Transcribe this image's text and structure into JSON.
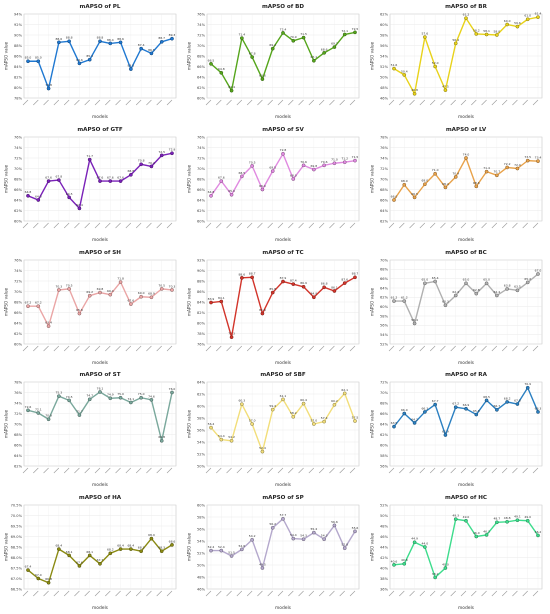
{
  "chart_data": [
    {
      "type": "line",
      "title": "mAPSO of PL",
      "ylabel": "mAPSO value",
      "xlabel": "models",
      "color": "#1f78d1",
      "yticks": [
        "78%",
        "80%",
        "82%",
        "84%",
        "86%",
        "88%",
        "90%",
        "92%",
        "94%"
      ],
      "values": [
        85.0,
        85.0,
        79.8,
        88.6,
        88.8,
        84.6,
        85.3,
        88.8,
        88.4,
        88.6,
        83.5,
        87.4,
        86.5,
        88.7,
        89.3
      ]
    },
    {
      "type": "line",
      "title": "mAPSO of BD",
      "ylabel": "mAPSO value",
      "xlabel": "models",
      "color": "#55a51b",
      "yticks": [
        "60%",
        "62%",
        "64%",
        "66%",
        "68%",
        "70%",
        "72%",
        "74%",
        "76%"
      ],
      "values": [
        66.5,
        64.8,
        61.4,
        71.4,
        67.8,
        63.6,
        69.4,
        72.4,
        70.9,
        71.5,
        67.1,
        68.6,
        69.7,
        72.1,
        72.5
      ]
    },
    {
      "type": "line",
      "title": "mAPSO of BR",
      "ylabel": "mAPSO value",
      "xlabel": "models",
      "color": "#e8d21a",
      "yticks": [
        "46%",
        "48%",
        "50%",
        "52%",
        "54%",
        "56%",
        "58%",
        "60%",
        "62%"
      ],
      "values": [
        51.6,
        50.4,
        46.8,
        57.6,
        52.0,
        47.5,
        56.4,
        61.2,
        58.2,
        58.1,
        58.0,
        60.0,
        59.6,
        61.0,
        61.4
      ]
    },
    {
      "type": "line",
      "title": "mAPSO of GTF",
      "ylabel": "mAPSO value",
      "xlabel": "models",
      "color": "#7a21b8",
      "yticks": [
        "60%",
        "62%",
        "64%",
        "66%",
        "68%",
        "70%",
        "72%",
        "74%",
        "76%"
      ],
      "values": [
        64.8,
        64.0,
        67.6,
        67.8,
        64.5,
        62.4,
        71.7,
        67.6,
        67.6,
        67.6,
        68.8,
        70.8,
        70.4,
        72.5,
        72.9
      ]
    },
    {
      "type": "line",
      "title": "mAPSO of SV",
      "ylabel": "mAPSO value",
      "xlabel": "models",
      "color": "#e08ae0",
      "yticks": [
        "60%",
        "62%",
        "64%",
        "66%",
        "68%",
        "70%",
        "72%",
        "74%",
        "76%"
      ],
      "values": [
        64.8,
        67.6,
        65.0,
        68.5,
        70.5,
        66.0,
        69.5,
        72.8,
        68.0,
        70.6,
        69.8,
        70.6,
        71.0,
        71.2,
        71.5
      ]
    },
    {
      "type": "line",
      "title": "mAPSO of LV",
      "ylabel": "mAPSO value",
      "xlabel": "models",
      "color": "#e8a24a",
      "yticks": [
        "62%",
        "64%",
        "66%",
        "68%",
        "70%",
        "72%",
        "74%",
        "76%",
        "78%"
      ],
      "values": [
        66.0,
        68.9,
        66.5,
        69.0,
        71.0,
        68.4,
        70.4,
        74.0,
        68.6,
        71.4,
        70.7,
        72.2,
        72.0,
        73.5,
        73.4
      ]
    },
    {
      "type": "line",
      "title": "mAPSO of SH",
      "ylabel": "mAPSO value",
      "xlabel": "models",
      "color": "#eaa5a5",
      "yticks": [
        "60%",
        "62%",
        "64%",
        "66%",
        "68%",
        "70%",
        "72%",
        "74%",
        "76%"
      ],
      "values": [
        67.2,
        67.2,
        63.4,
        70.3,
        70.5,
        65.8,
        69.2,
        69.8,
        69.4,
        71.8,
        67.6,
        69.0,
        68.9,
        70.5,
        70.3
      ]
    },
    {
      "type": "line",
      "title": "mAPSO of TC",
      "ylabel": "mAPSO value",
      "xlabel": "models",
      "color": "#d2342a",
      "yticks": [
        "76%",
        "78%",
        "80%",
        "82%",
        "84%",
        "86%",
        "88%",
        "90%",
        "92%"
      ],
      "values": [
        83.9,
        84.1,
        77.3,
        88.6,
        88.7,
        81.8,
        85.8,
        87.9,
        87.4,
        86.9,
        84.9,
        86.8,
        86.1,
        87.6,
        88.7
      ]
    },
    {
      "type": "line",
      "title": "mAPSO of BC",
      "ylabel": "mAPSO value",
      "xlabel": "models",
      "color": "#b0b0b0",
      "yticks": [
        "52%",
        "54%",
        "56%",
        "58%",
        "60%",
        "62%",
        "64%",
        "66%",
        "68%",
        "70%"
      ],
      "values": [
        61.2,
        61.2,
        56.4,
        65.0,
        65.4,
        60.3,
        62.4,
        65.0,
        62.8,
        65.0,
        62.4,
        63.8,
        63.5,
        65.2,
        67.0
      ]
    },
    {
      "type": "line",
      "title": "mAPSO of ST",
      "ylabel": "mAPSO value",
      "xlabel": "models",
      "color": "#7aa89c",
      "yticks": [
        "62%",
        "64%",
        "66%",
        "68%",
        "70%",
        "72%",
        "74%",
        "76%",
        "78%"
      ],
      "values": [
        72.6,
        72.1,
        70.9,
        75.3,
        74.5,
        71.7,
        74.7,
        76.1,
        74.9,
        75.0,
        74.1,
        75.0,
        74.6,
        66.8,
        76.0
      ]
    },
    {
      "type": "line",
      "title": "mAPSO of SBF",
      "ylabel": "mAPSO value",
      "xlabel": "models",
      "color": "#f2de7a",
      "yticks": [
        "50%",
        "52%",
        "54%",
        "56%",
        "58%",
        "60%",
        "62%",
        "64%"
      ],
      "values": [
        56.4,
        54.4,
        54.2,
        60.3,
        57.0,
        52.4,
        59.4,
        61.1,
        58.2,
        60.4,
        57.0,
        57.4,
        60.2,
        62.1,
        57.5
      ]
    },
    {
      "type": "line",
      "title": "mAPSO of RA",
      "ylabel": "mAPSO value",
      "xlabel": "models",
      "color": "#2a7fc1",
      "yticks": [
        "56%",
        "58%",
        "60%",
        "62%",
        "64%",
        "66%",
        "68%",
        "70%",
        "72%"
      ],
      "values": [
        63.5,
        66.0,
        64.2,
        66.3,
        67.7,
        61.9,
        67.2,
        66.9,
        65.8,
        68.5,
        66.7,
        68.2,
        67.8,
        70.9,
        66.3
      ]
    },
    {
      "type": "line",
      "title": "mAPSO of HA",
      "ylabel": "mAPSO value",
      "xlabel": "models",
      "color": "#8a8a12",
      "yticks": [
        "66.5%",
        "67.0%",
        "67.5%",
        "68.0%",
        "68.5%",
        "69.0%",
        "69.5%",
        "70.0%",
        "70.5%"
      ],
      "values": [
        67.4,
        67.0,
        66.8,
        68.4,
        68.1,
        67.6,
        68.1,
        67.7,
        68.2,
        68.4,
        68.4,
        68.3,
        68.9,
        68.3,
        68.6
      ]
    },
    {
      "type": "line",
      "title": "mAPSO of SP",
      "ylabel": "mAPSO value",
      "xlabel": "models",
      "color": "#b4a8cc",
      "yticks": [
        "46%",
        "48%",
        "50%",
        "52%",
        "54%",
        "56%",
        "58%",
        "60%"
      ],
      "values": [
        52.4,
        52.4,
        51.5,
        52.6,
        54.2,
        49.5,
        56.2,
        57.7,
        54.4,
        54.3,
        55.4,
        54.3,
        56.6,
        52.8,
        55.6
      ]
    },
    {
      "type": "line",
      "title": "mAPSO of HC",
      "ylabel": "mAPSO value",
      "xlabel": "models",
      "color": "#3ddc8c",
      "yticks": [
        "36%",
        "38%",
        "40%",
        "42%",
        "44%",
        "46%",
        "48%",
        "50%",
        "52%"
      ],
      "values": [
        40.6,
        40.8,
        44.9,
        44.0,
        38.2,
        40.0,
        49.3,
        49.0,
        46.0,
        46.3,
        48.7,
        48.8,
        49.1,
        49.0,
        46.2
      ]
    }
  ]
}
